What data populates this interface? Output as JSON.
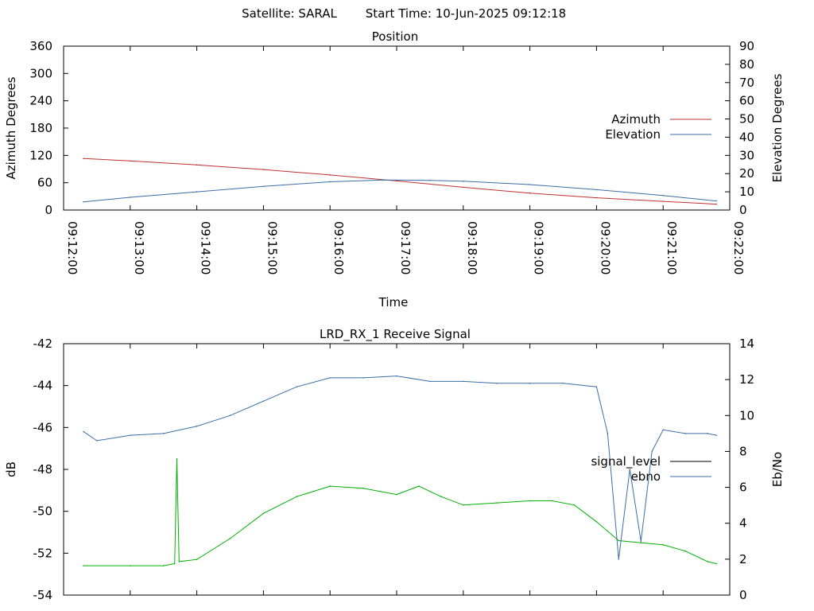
{
  "header": {
    "satellite": "Satellite: SARAL",
    "start_time": "Start Time: 10-Jun-2025 09:12:18"
  },
  "chart_data": [
    {
      "type": "line",
      "title": "Position",
      "xlabel": "Time",
      "ylabel": "Azimuth Degrees",
      "y2label": "Elevation Degrees",
      "xticks": [
        "09:12:00",
        "09:13:00",
        "09:14:00",
        "09:15:00",
        "09:16:00",
        "09:17:00",
        "09:18:00",
        "09:19:00",
        "09:20:00",
        "09:21:00",
        "09:22:00"
      ],
      "xlim": [
        "09:12:00",
        "09:22:00"
      ],
      "ylim": [
        0,
        360
      ],
      "y2lim": [
        0,
        90
      ],
      "yticks": [
        0,
        60,
        120,
        180,
        240,
        300,
        360
      ],
      "y2ticks": [
        0,
        10,
        20,
        30,
        40,
        50,
        60,
        70,
        80,
        90
      ],
      "legend_position": "right",
      "grid": false,
      "series": [
        {
          "name": "Azimuth",
          "axis": "left",
          "color": "#c03030",
          "x": [
            "09:12:18",
            "09:13:00",
            "09:14:00",
            "09:15:00",
            "09:16:00",
            "09:17:00",
            "09:18:00",
            "09:19:00",
            "09:20:00",
            "09:21:00",
            "09:21:48"
          ],
          "values": [
            113,
            108,
            99,
            89,
            77,
            64,
            50,
            37,
            27,
            19,
            13
          ]
        },
        {
          "name": "Elevation",
          "axis": "right",
          "color": "#3a6ea5",
          "x": [
            "09:12:18",
            "09:13:00",
            "09:14:00",
            "09:15:00",
            "09:16:00",
            "09:16:48",
            "09:17:30",
            "09:18:00",
            "09:19:00",
            "09:20:00",
            "09:21:00",
            "09:21:48"
          ],
          "values": [
            4.5,
            7,
            10,
            13,
            15.5,
            16.5,
            16.3,
            15.8,
            14,
            11.2,
            8,
            5
          ]
        }
      ]
    },
    {
      "type": "line",
      "title": "LRD_RX_1 Receive Signal",
      "ylabel": "dB",
      "y2label": "Eb/No",
      "xlim": [
        "09:12:00",
        "09:22:00"
      ],
      "ylim": [
        -54,
        -42
      ],
      "y2lim": [
        0,
        14
      ],
      "yticks": [
        -54,
        -52,
        -50,
        -48,
        -46,
        -44,
        -42
      ],
      "y2ticks": [
        0,
        2,
        4,
        6,
        8,
        10,
        12,
        14
      ],
      "legend_position": "right",
      "grid": false,
      "series": [
        {
          "name": "signal_level",
          "axis": "left",
          "color": "#00b000",
          "x": [
            "09:12:18",
            "09:13:00",
            "09:13:30",
            "09:13:40",
            "09:13:42",
            "09:13:44",
            "09:14:00",
            "09:14:30",
            "09:15:00",
            "09:15:30",
            "09:16:00",
            "09:16:30",
            "09:17:00",
            "09:17:20",
            "09:17:40",
            "09:18:00",
            "09:18:30",
            "09:19:00",
            "09:19:20",
            "09:19:40",
            "09:20:00",
            "09:20:20",
            "09:20:40",
            "09:21:00",
            "09:21:20",
            "09:21:40",
            "09:21:48"
          ],
          "values": [
            -52.6,
            -52.6,
            -52.6,
            -52.5,
            -47.5,
            -52.4,
            -52.3,
            -51.3,
            -50.1,
            -49.3,
            -48.8,
            -48.9,
            -49.2,
            -48.8,
            -49.3,
            -49.7,
            -49.6,
            -49.5,
            -49.5,
            -49.7,
            -50.5,
            -51.4,
            -51.5,
            -51.6,
            -51.9,
            -52.4,
            -52.5
          ]
        },
        {
          "name": "ebno",
          "axis": "right",
          "color": "#3a6ea5",
          "x": [
            "09:12:18",
            "09:12:30",
            "09:13:00",
            "09:13:30",
            "09:14:00",
            "09:14:30",
            "09:15:00",
            "09:15:30",
            "09:16:00",
            "09:16:30",
            "09:17:00",
            "09:17:30",
            "09:18:00",
            "09:18:30",
            "09:19:00",
            "09:19:30",
            "09:20:00",
            "09:20:10",
            "09:20:20",
            "09:20:30",
            "09:20:40",
            "09:20:50",
            "09:21:00",
            "09:21:20",
            "09:21:40",
            "09:21:48"
          ],
          "values": [
            9.1,
            8.6,
            8.9,
            9.0,
            9.4,
            10.0,
            10.8,
            11.6,
            12.1,
            12.1,
            12.2,
            11.9,
            11.9,
            11.8,
            11.8,
            11.8,
            11.6,
            9.0,
            2.0,
            7.0,
            3.0,
            8.0,
            9.2,
            9.0,
            9.0,
            8.9
          ]
        }
      ]
    }
  ]
}
